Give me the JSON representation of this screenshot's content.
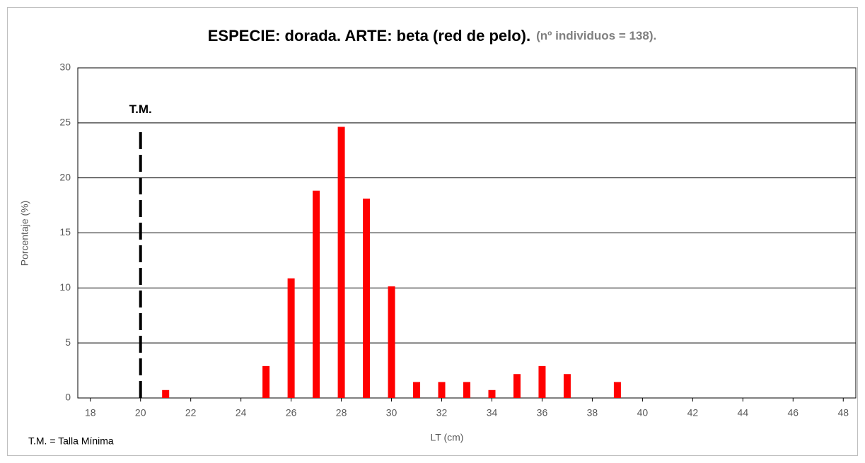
{
  "chart_data": {
    "type": "bar",
    "title": "ESPECIE: dorada. ARTE: beta (red de pelo).",
    "title_note": "(nº individuos = 138).",
    "x_label": "LT (cm)",
    "y_label": "Porcentaje (%)",
    "footnote": "T.M. = Talla Mínima",
    "x": [
      21,
      25,
      26,
      27,
      28,
      29,
      30,
      31,
      32,
      33,
      34,
      35,
      36,
      37,
      39
    ],
    "values": [
      0.72,
      2.9,
      10.87,
      18.84,
      24.64,
      18.12,
      10.14,
      1.45,
      1.45,
      1.45,
      0.72,
      2.17,
      2.9,
      2.17,
      1.45
    ],
    "color": "#ff0000",
    "xlim": [
      17.5,
      48.5
    ],
    "xticks": [
      18,
      20,
      22,
      24,
      26,
      28,
      30,
      32,
      34,
      36,
      38,
      40,
      42,
      44,
      46,
      48
    ],
    "ylim": [
      0,
      30
    ],
    "yticks": [
      0,
      5,
      10,
      15,
      20,
      25,
      30
    ],
    "grid": true,
    "reference_line": {
      "x": 20,
      "y_end": 24.5,
      "label": "T.M.",
      "color": "#000000"
    }
  }
}
